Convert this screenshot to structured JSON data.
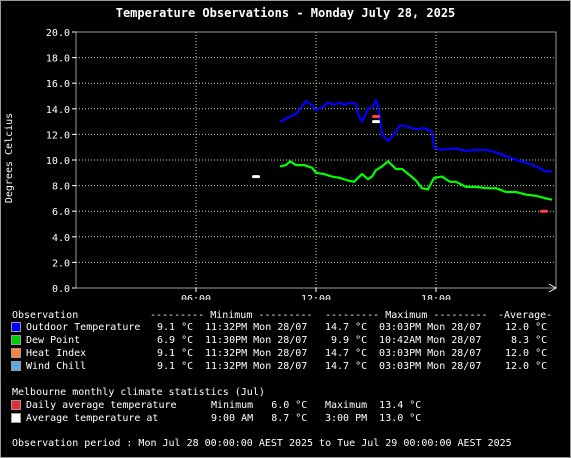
{
  "title": "Temperature Observations - Monday July 28, 2025",
  "chart_data": {
    "type": "line",
    "title": "Temperature Observations - Monday July 28, 2025",
    "ylabel": "Degrees Celcius",
    "xlabel": "",
    "xlim": [
      0,
      24
    ],
    "ylim": [
      0,
      20
    ],
    "yticks": [
      "0.0",
      "2.0",
      "4.0",
      "6.0",
      "8.0",
      "10.0",
      "12.0",
      "14.0",
      "16.0",
      "18.0",
      "20.0"
    ],
    "xticks": [
      {
        "x": 6,
        "label": "06:00"
      },
      {
        "x": 12,
        "label": "12:00"
      },
      {
        "x": 18,
        "label": "18:00"
      }
    ],
    "grid": true,
    "series": [
      {
        "name": "Outdoor Temperature",
        "color": "#0000ff",
        "x": [
          10.2,
          10.6,
          11.0,
          11.2,
          11.5,
          11.8,
          12.0,
          12.3,
          12.6,
          12.9,
          13.2,
          13.4,
          13.7,
          14.0,
          14.1,
          14.3,
          14.6,
          14.8,
          15.0,
          15.1,
          15.3,
          15.6,
          15.8,
          16.2,
          16.6,
          17.0,
          17.4,
          17.8,
          17.9,
          18.2,
          19.0,
          19.5,
          20.0,
          20.5,
          21.0,
          21.5,
          22.0,
          22.5,
          23.0,
          23.5,
          23.8
        ],
        "y": [
          13.0,
          13.3,
          13.6,
          14.0,
          14.6,
          14.3,
          13.9,
          14.1,
          14.5,
          14.3,
          14.5,
          14.3,
          14.5,
          14.4,
          13.6,
          13.0,
          14.0,
          14.1,
          14.7,
          14.2,
          12.0,
          11.5,
          11.8,
          12.7,
          12.6,
          12.4,
          12.5,
          12.2,
          11.0,
          10.8,
          10.9,
          10.7,
          10.8,
          10.8,
          10.6,
          10.3,
          10.0,
          9.8,
          9.5,
          9.1,
          9.1
        ]
      },
      {
        "name": "Dew Point",
        "color": "#00ff00",
        "x": [
          10.2,
          10.5,
          10.7,
          11.0,
          11.4,
          11.8,
          12.0,
          12.4,
          12.8,
          13.2,
          13.6,
          13.9,
          14.1,
          14.3,
          14.6,
          14.8,
          15.0,
          15.3,
          15.6,
          16.0,
          16.3,
          16.7,
          17.0,
          17.3,
          17.6,
          17.9,
          18.3,
          18.7,
          19.0,
          19.5,
          20.0,
          20.5,
          21.0,
          21.5,
          22.0,
          22.5,
          23.0,
          23.5,
          23.8
        ],
        "y": [
          9.5,
          9.6,
          9.9,
          9.6,
          9.6,
          9.4,
          9.0,
          8.9,
          8.7,
          8.6,
          8.4,
          8.3,
          8.6,
          8.9,
          8.5,
          8.7,
          9.2,
          9.5,
          9.9,
          9.3,
          9.3,
          8.8,
          8.4,
          7.8,
          7.7,
          8.6,
          8.7,
          8.3,
          8.3,
          7.9,
          7.9,
          7.8,
          7.8,
          7.5,
          7.5,
          7.3,
          7.2,
          7.0,
          6.9
        ]
      },
      {
        "name": "Heat Index",
        "color": "#ff7f3f",
        "x": [],
        "y": []
      },
      {
        "name": "Wind Chill",
        "color": "#5fa8e0",
        "x": [],
        "y": []
      }
    ],
    "markers": [
      {
        "name": "Daily average temperature",
        "color": "#ff4040",
        "points": [
          {
            "x": 23.4,
            "y": 6.0
          },
          {
            "x": 15.0,
            "y": 13.4
          }
        ]
      },
      {
        "name": "Average temperature at",
        "color": "#ffffff",
        "points": [
          {
            "x": 9.0,
            "y": 8.7
          },
          {
            "x": 15.0,
            "y": 13.0
          }
        ]
      }
    ]
  },
  "stats": {
    "observation_label": "Observation",
    "minimum_header": "--------- Minimum ---------",
    "maximum_header": "--------- Maximum ---------",
    "average_header": "-Average-",
    "rows": [
      {
        "label": "Outdoor Temperature",
        "color": "#0000ff",
        "min": "9.1 °C",
        "min_time": "11:32PM Mon 28/07",
        "max": "14.7 °C",
        "max_time": "03:03PM Mon 28/07",
        "avg": "12.0 °C"
      },
      {
        "label": "Dew Point",
        "color": "#00cc00",
        "min": "6.9 °C",
        "min_time": "11:30PM Mon 28/07",
        "max": "9.9 °C",
        "max_time": "10:42AM Mon 28/07",
        "avg": "8.3 °C"
      },
      {
        "label": "Heat Index",
        "color": "#ff7f3f",
        "min": "9.1 °C",
        "min_time": "11:32PM Mon 28/07",
        "max": "14.7 °C",
        "max_time": "03:03PM Mon 28/07",
        "avg": "12.0 °C"
      },
      {
        "label": "Wind Chill",
        "color": "#5fa8e0",
        "min": "9.1 °C",
        "min_time": "11:32PM Mon 28/07",
        "max": "14.7 °C",
        "max_time": "03:03PM Mon 28/07",
        "avg": "12.0 °C"
      }
    ]
  },
  "climate": {
    "heading": "Melbourne monthly climate statistics (Jul)",
    "rows": [
      {
        "label": "Daily average temperature",
        "color": "#e03030",
        "a": "Minimum   6.0 °C",
        "b": "Maximum  13.4 °C"
      },
      {
        "label": "Average temperature at",
        "color": "#ffffff",
        "a": "9:00 AM   8.7 °C",
        "b": "3:00 PM  13.0 °C"
      }
    ]
  },
  "period": "Observation period : Mon Jul 28 00:00:00 AEST 2025 to Tue Jul 29 00:00:00 AEST 2025"
}
